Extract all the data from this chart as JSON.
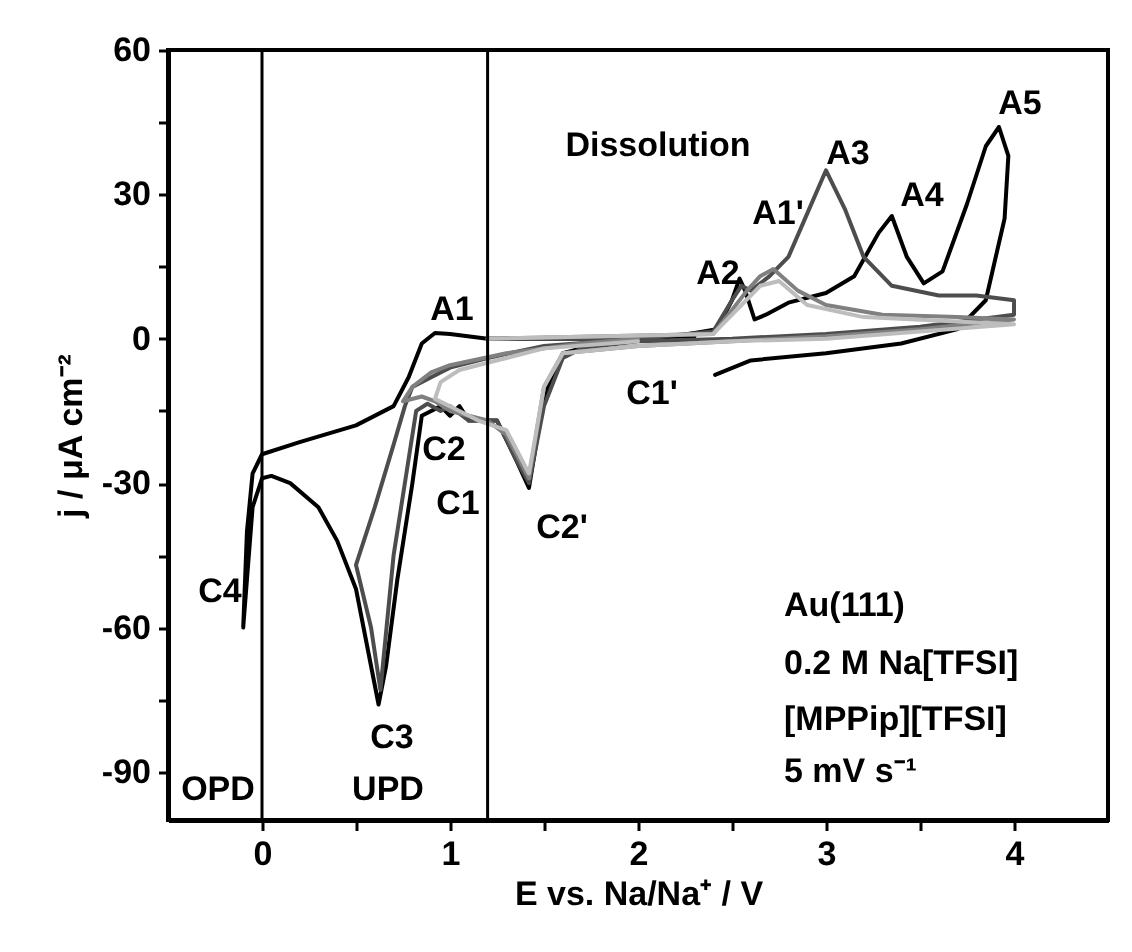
{
  "chart_data": {
    "type": "line",
    "xlabel": "E vs. Na/Na⁺ / V",
    "ylabel": "j / μA cm⁻²",
    "xlim": [
      -0.5,
      4.5
    ],
    "ylim": [
      -100,
      60
    ],
    "xticks": [
      0,
      {
        "value": 0.5,
        "label": null
      },
      1,
      {
        "value": 1.5,
        "label": null
      },
      2,
      {
        "value": 2.5,
        "label": null
      },
      3,
      {
        "value": 3.5,
        "label": null
      },
      4
    ],
    "yticks": [
      -90,
      {
        "value": -75,
        "label": null
      },
      -60,
      {
        "value": -45,
        "label": null
      },
      -30,
      {
        "value": -15,
        "label": null
      },
      0,
      {
        "value": 15,
        "label": null
      },
      30,
      {
        "value": 45,
        "label": null
      },
      60
    ],
    "grid": false,
    "legend": false,
    "line_style": "solid",
    "marker": "none",
    "series": [
      {
        "color": "#000000",
        "x": [
          2.41,
          2.6,
          3.0,
          3.4,
          3.7,
          3.85,
          3.95,
          3.97,
          3.92,
          3.85,
          3.75,
          3.62,
          3.52,
          3.43,
          3.35,
          3.28,
          3.15,
          3.0,
          2.8,
          2.68,
          2.62,
          2.57,
          2.54,
          2.5,
          2.42,
          2.2,
          1.8,
          1.6,
          1.5,
          1.42,
          1.35,
          1.25,
          1.1,
          1.05,
          1.0,
          0.95,
          0.9,
          0.85,
          0.8,
          0.72,
          0.66,
          0.62,
          0.58,
          0.5,
          0.4,
          0.3,
          0.15,
          0.05,
          0.0,
          -0.05,
          -0.08,
          -0.1,
          -0.08,
          -0.05,
          0.0,
          0.2,
          0.5,
          0.7,
          0.78,
          0.85,
          0.92,
          1.0,
          1.2,
          1.8,
          2.3
        ],
        "values": [
          -7.5,
          -4.5,
          -3,
          -1,
          2,
          8,
          25,
          38,
          44,
          40,
          28,
          14,
          11.5,
          17,
          25.5,
          22,
          13,
          9.5,
          7.5,
          5,
          4,
          10,
          12.5,
          8,
          2,
          0.5,
          -1,
          -3,
          -12,
          -31,
          -25,
          -17,
          -17,
          -14,
          -16,
          -14,
          -15,
          -16,
          -30,
          -50,
          -68,
          -76,
          -68,
          -52,
          -42,
          -35,
          -30,
          -28.5,
          -29,
          -35,
          -50,
          -60,
          -40,
          -28,
          -24,
          -21.5,
          -18,
          -14,
          -8,
          -1,
          1.2,
          1,
          0,
          0,
          0.5
        ]
      },
      {
        "color": "#4d4d4d",
        "x": [
          1.2,
          2.0,
          2.4,
          2.5,
          2.55,
          2.6,
          2.7,
          2.8,
          2.9,
          3.0,
          3.1,
          3.2,
          3.35,
          3.6,
          3.8,
          4.0,
          4.0,
          3.5,
          3.0,
          2.5,
          2.0,
          1.7,
          1.6,
          1.5,
          1.42,
          1.35,
          1.25,
          1.1,
          1.0,
          0.95,
          0.88,
          0.82,
          0.78,
          0.7,
          0.63,
          0.58,
          0.5,
          0.6,
          0.7,
          0.76,
          0.8,
          0.9,
          1.0,
          1.2,
          1.5,
          2.0
        ],
        "values": [
          0,
          0,
          1.5,
          8,
          11,
          10,
          13,
          17,
          26,
          35,
          27,
          17,
          11,
          9,
          9,
          8,
          5,
          2.5,
          1,
          0,
          -0.5,
          -2,
          -4,
          -14,
          -30,
          -25,
          -17,
          -17,
          -14,
          -15,
          -13.5,
          -15,
          -25,
          -45,
          -73,
          -60,
          -47,
          -35,
          -22,
          -14,
          -10,
          -8,
          -6,
          -4,
          -1.5,
          0
        ]
      },
      {
        "color": "#808080",
        "x": [
          1.2,
          2.4,
          2.5,
          2.58,
          2.65,
          2.72,
          2.85,
          3.0,
          3.3,
          3.7,
          4.0,
          3.5,
          3.0,
          2.5,
          2.0,
          1.6,
          1.5,
          1.42,
          1.3,
          1.2,
          1.0,
          0.92,
          0.85,
          0.75,
          0.8,
          0.9,
          1.0,
          1.3,
          1.7,
          2.0
        ],
        "values": [
          0,
          1,
          6,
          10,
          13,
          14.5,
          10,
          7,
          5,
          4.5,
          4,
          2,
          0.5,
          -0.5,
          -1.5,
          -3,
          -10,
          -29,
          -20,
          -17,
          -15,
          -13,
          -12,
          -13,
          -10,
          -7,
          -5.5,
          -3,
          -1,
          0
        ]
      },
      {
        "color": "#bdbdbd",
        "x": [
          1.2,
          2.4,
          2.55,
          2.65,
          2.75,
          2.9,
          3.2,
          4.0,
          3.5,
          3.0,
          2.5,
          2.0,
          1.6,
          1.5,
          1.42,
          1.3,
          1.15,
          1.05,
          0.92,
          0.95,
          1.05,
          1.2,
          1.5,
          2.0
        ],
        "values": [
          0,
          1,
          7,
          11,
          12,
          7,
          4.5,
          3,
          1.5,
          0,
          -0.5,
          -1.5,
          -3,
          -10,
          -28,
          -19,
          -17,
          -15,
          -12.5,
          -9,
          -6.5,
          -5,
          -2,
          -0.5
        ]
      }
    ],
    "ref_lines": [
      {
        "axis": "x",
        "value": 0,
        "color": "#000000"
      },
      {
        "axis": "x",
        "value": 1.2,
        "color": "#000000"
      }
    ],
    "annotations": [
      "A1",
      "C2",
      "C1",
      "C2'",
      "C1'",
      "A2",
      "A1'",
      "A3",
      "A4",
      "A5",
      "Dissolution",
      "C4",
      "C3",
      "UPD",
      "OPD",
      "Au(111)",
      "0.2 M Na[TFSI]",
      "[MPPip][TFSI]",
      "5 mV s⁻¹"
    ]
  }
}
